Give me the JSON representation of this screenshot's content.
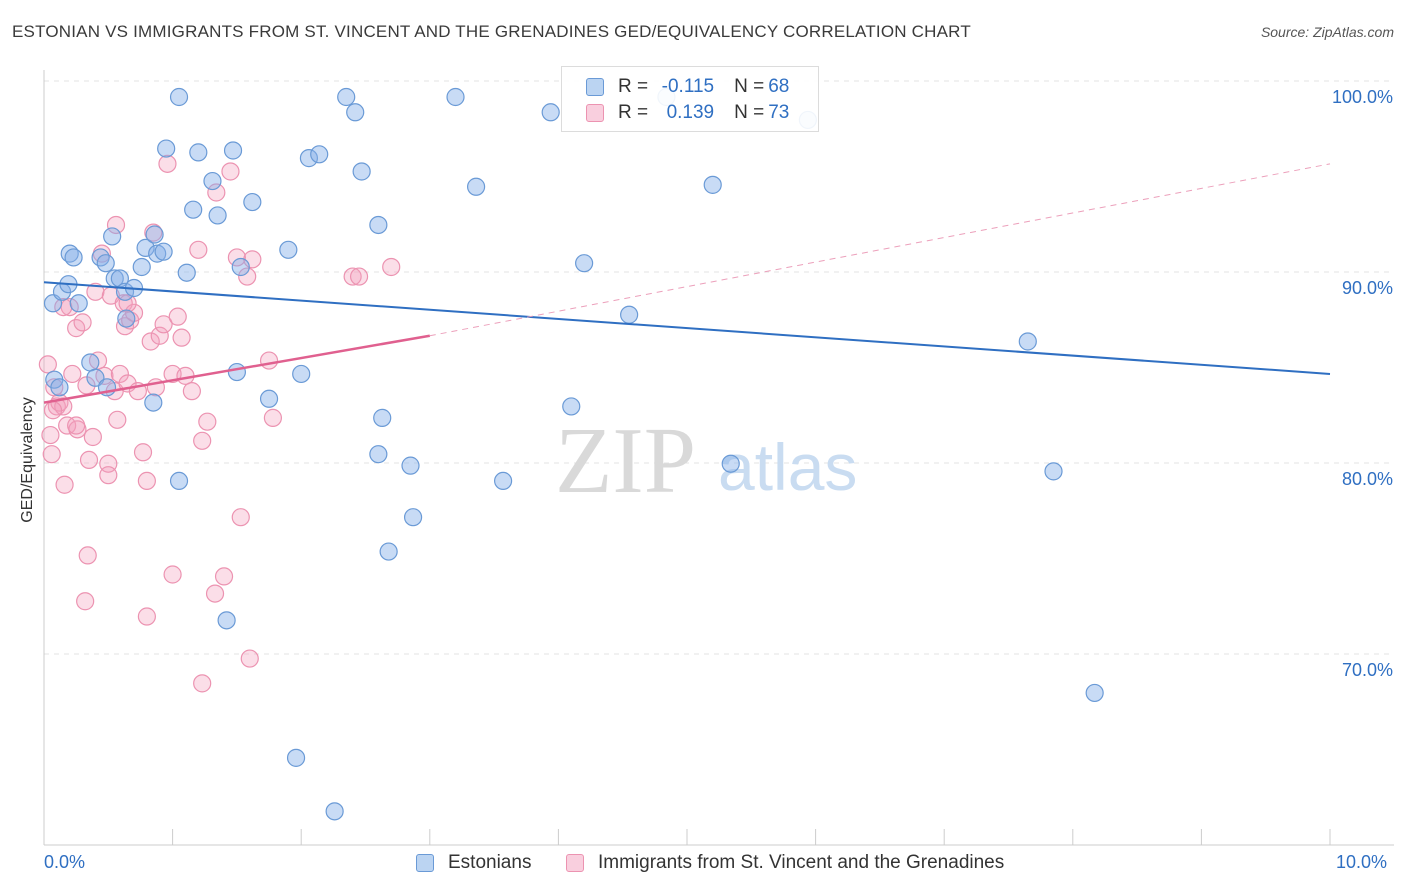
{
  "header": {
    "title": "ESTONIAN VS IMMIGRANTS FROM ST. VINCENT AND THE GRENADINES GED/EQUIVALENCY CORRELATION CHART",
    "source": "Source: ZipAtlas.com"
  },
  "colors": {
    "blue": "#2f6fc2",
    "blue_fill": "rgba(132,176,232,0.45)",
    "blue_stroke": "#6a9ad6",
    "pink": "#e0608f",
    "pink_fill": "rgba(244,160,190,0.35)",
    "pink_stroke": "#ec93b1",
    "grid": "#e3e3e3"
  },
  "legend": {
    "r_label": "R = ",
    "n_label": "N = ",
    "rows": [
      {
        "swatch": "blue",
        "r": "-0.115",
        "n": "68"
      },
      {
        "swatch": "pink",
        "r": "0.139",
        "n": "73"
      }
    ]
  },
  "watermark": {
    "zip": "ZIP",
    "atlas": "atlas"
  },
  "chart_data": {
    "type": "scatter",
    "xlabel": "",
    "ylabel": "GED/Equivalency",
    "xlim": [
      0.0,
      10.0
    ],
    "ylim": [
      62.0,
      101.5
    ],
    "x_tick_labels": [
      "0.0%",
      "10.0%"
    ],
    "y_ticks": [
      100,
      90,
      80,
      70
    ],
    "y_tick_labels": [
      "100.0%",
      "90.0%",
      "80.0%",
      "70.0%"
    ],
    "grid": true,
    "legend_position": "top-center",
    "series": [
      {
        "name": "Estonians",
        "color": "blue",
        "trend": {
          "x0": 0.0,
          "y0": 90.3,
          "x1": 10.0,
          "y1": 85.5
        },
        "points": [
          [
            0.07,
            89.2
          ],
          [
            0.14,
            89.8
          ],
          [
            0.19,
            90.2
          ],
          [
            0.2,
            91.8
          ],
          [
            0.23,
            91.6
          ],
          [
            0.27,
            89.2
          ],
          [
            0.36,
            86.1
          ],
          [
            0.4,
            85.3
          ],
          [
            0.44,
            91.6
          ],
          [
            0.48,
            91.3
          ],
          [
            0.53,
            92.7
          ],
          [
            0.55,
            90.5
          ],
          [
            0.59,
            90.5
          ],
          [
            0.63,
            89.8
          ],
          [
            0.64,
            88.4
          ],
          [
            0.7,
            90.0
          ],
          [
            0.76,
            91.1
          ],
          [
            0.79,
            92.1
          ],
          [
            0.86,
            92.8
          ],
          [
            0.88,
            91.8
          ],
          [
            0.93,
            91.9
          ],
          [
            0.95,
            97.3
          ],
          [
            1.05,
            100.0
          ],
          [
            1.11,
            90.8
          ],
          [
            1.16,
            94.1
          ],
          [
            1.2,
            97.1
          ],
          [
            1.31,
            95.6
          ],
          [
            1.35,
            93.8
          ],
          [
            1.47,
            97.2
          ],
          [
            1.53,
            91.1
          ],
          [
            1.62,
            94.5
          ],
          [
            1.9,
            92.0
          ],
          [
            2.06,
            96.8
          ],
          [
            2.14,
            97.0
          ],
          [
            2.35,
            100.0
          ],
          [
            2.42,
            99.2
          ],
          [
            2.47,
            96.1
          ],
          [
            2.6,
            93.3
          ],
          [
            3.2,
            100.0
          ],
          [
            3.36,
            95.3
          ],
          [
            3.94,
            99.2
          ],
          [
            4.2,
            91.3
          ],
          [
            4.84,
            100.0
          ],
          [
            5.2,
            95.4
          ],
          [
            5.94,
            98.8
          ],
          [
            0.08,
            85.2
          ],
          [
            0.12,
            84.8
          ],
          [
            0.49,
            84.8
          ],
          [
            0.85,
            84.0
          ],
          [
            1.05,
            79.9
          ],
          [
            1.5,
            85.6
          ],
          [
            1.75,
            84.2
          ],
          [
            2.0,
            85.5
          ],
          [
            2.6,
            81.3
          ],
          [
            2.63,
            83.2
          ],
          [
            2.85,
            80.7
          ],
          [
            2.68,
            76.2
          ],
          [
            2.87,
            78.0
          ],
          [
            3.57,
            79.9
          ],
          [
            4.1,
            83.8
          ],
          [
            4.55,
            88.6
          ],
          [
            5.34,
            80.8
          ],
          [
            7.65,
            87.2
          ],
          [
            7.85,
            80.4
          ],
          [
            8.17,
            68.8
          ],
          [
            1.42,
            72.6
          ],
          [
            1.96,
            65.4
          ],
          [
            2.26,
            62.6
          ]
        ]
      },
      {
        "name": "Immigrants from St. Vincent and the Grenadines",
        "color": "pink",
        "trend": {
          "x0": 0.0,
          "y0": 84.0,
          "x1": 3.0,
          "y1": 87.5
        },
        "trend_ext": {
          "x0": 3.0,
          "y0": 87.5,
          "x1": 10.0,
          "y1": 96.5
        },
        "points": [
          [
            0.03,
            86.0
          ],
          [
            0.05,
            82.3
          ],
          [
            0.06,
            81.3
          ],
          [
            0.08,
            84.8
          ],
          [
            0.1,
            83.8
          ],
          [
            0.12,
            84.0
          ],
          [
            0.15,
            83.8
          ],
          [
            0.18,
            82.8
          ],
          [
            0.2,
            89.0
          ],
          [
            0.22,
            85.5
          ],
          [
            0.25,
            87.9
          ],
          [
            0.26,
            82.6
          ],
          [
            0.3,
            88.2
          ],
          [
            0.33,
            84.9
          ],
          [
            0.35,
            81.0
          ],
          [
            0.38,
            82.2
          ],
          [
            0.4,
            89.8
          ],
          [
            0.42,
            86.2
          ],
          [
            0.45,
            91.8
          ],
          [
            0.47,
            85.4
          ],
          [
            0.5,
            80.8
          ],
          [
            0.52,
            89.6
          ],
          [
            0.55,
            84.6
          ],
          [
            0.57,
            83.1
          ],
          [
            0.59,
            85.5
          ],
          [
            0.62,
            89.2
          ],
          [
            0.63,
            88.0
          ],
          [
            0.65,
            85.0
          ],
          [
            0.67,
            88.3
          ],
          [
            0.7,
            88.7
          ],
          [
            0.73,
            84.6
          ],
          [
            0.77,
            81.4
          ],
          [
            0.8,
            79.9
          ],
          [
            0.83,
            87.2
          ],
          [
            0.85,
            92.9
          ],
          [
            0.87,
            84.8
          ],
          [
            0.9,
            87.5
          ],
          [
            0.93,
            88.1
          ],
          [
            0.96,
            96.5
          ],
          [
            1.0,
            85.5
          ],
          [
            1.04,
            88.5
          ],
          [
            1.07,
            87.4
          ],
          [
            1.1,
            85.4
          ],
          [
            1.15,
            84.6
          ],
          [
            1.2,
            92.0
          ],
          [
            1.23,
            82.0
          ],
          [
            1.27,
            83.0
          ],
          [
            1.34,
            95.0
          ],
          [
            1.4,
            74.9
          ],
          [
            1.45,
            96.1
          ],
          [
            1.5,
            91.6
          ],
          [
            1.53,
            78.0
          ],
          [
            1.58,
            90.6
          ],
          [
            1.62,
            91.5
          ],
          [
            1.75,
            86.2
          ],
          [
            1.78,
            83.2
          ],
          [
            2.4,
            90.6
          ],
          [
            2.45,
            90.6
          ],
          [
            2.7,
            91.1
          ],
          [
            0.16,
            79.7
          ],
          [
            0.34,
            76.0
          ],
          [
            0.32,
            73.6
          ],
          [
            1.0,
            75.0
          ],
          [
            0.8,
            72.8
          ],
          [
            1.33,
            74.0
          ],
          [
            1.6,
            70.6
          ],
          [
            1.23,
            69.3
          ],
          [
            0.56,
            93.3
          ],
          [
            0.15,
            89.0
          ],
          [
            0.25,
            82.8
          ],
          [
            0.65,
            89.2
          ],
          [
            0.07,
            83.6
          ],
          [
            0.5,
            80.2
          ]
        ]
      }
    ]
  },
  "bottom_legend": {
    "items": [
      {
        "label": "Estonians",
        "swatch": "blue"
      },
      {
        "label": "Immigrants from St. Vincent and the Grenadines",
        "swatch": "pink"
      }
    ]
  }
}
